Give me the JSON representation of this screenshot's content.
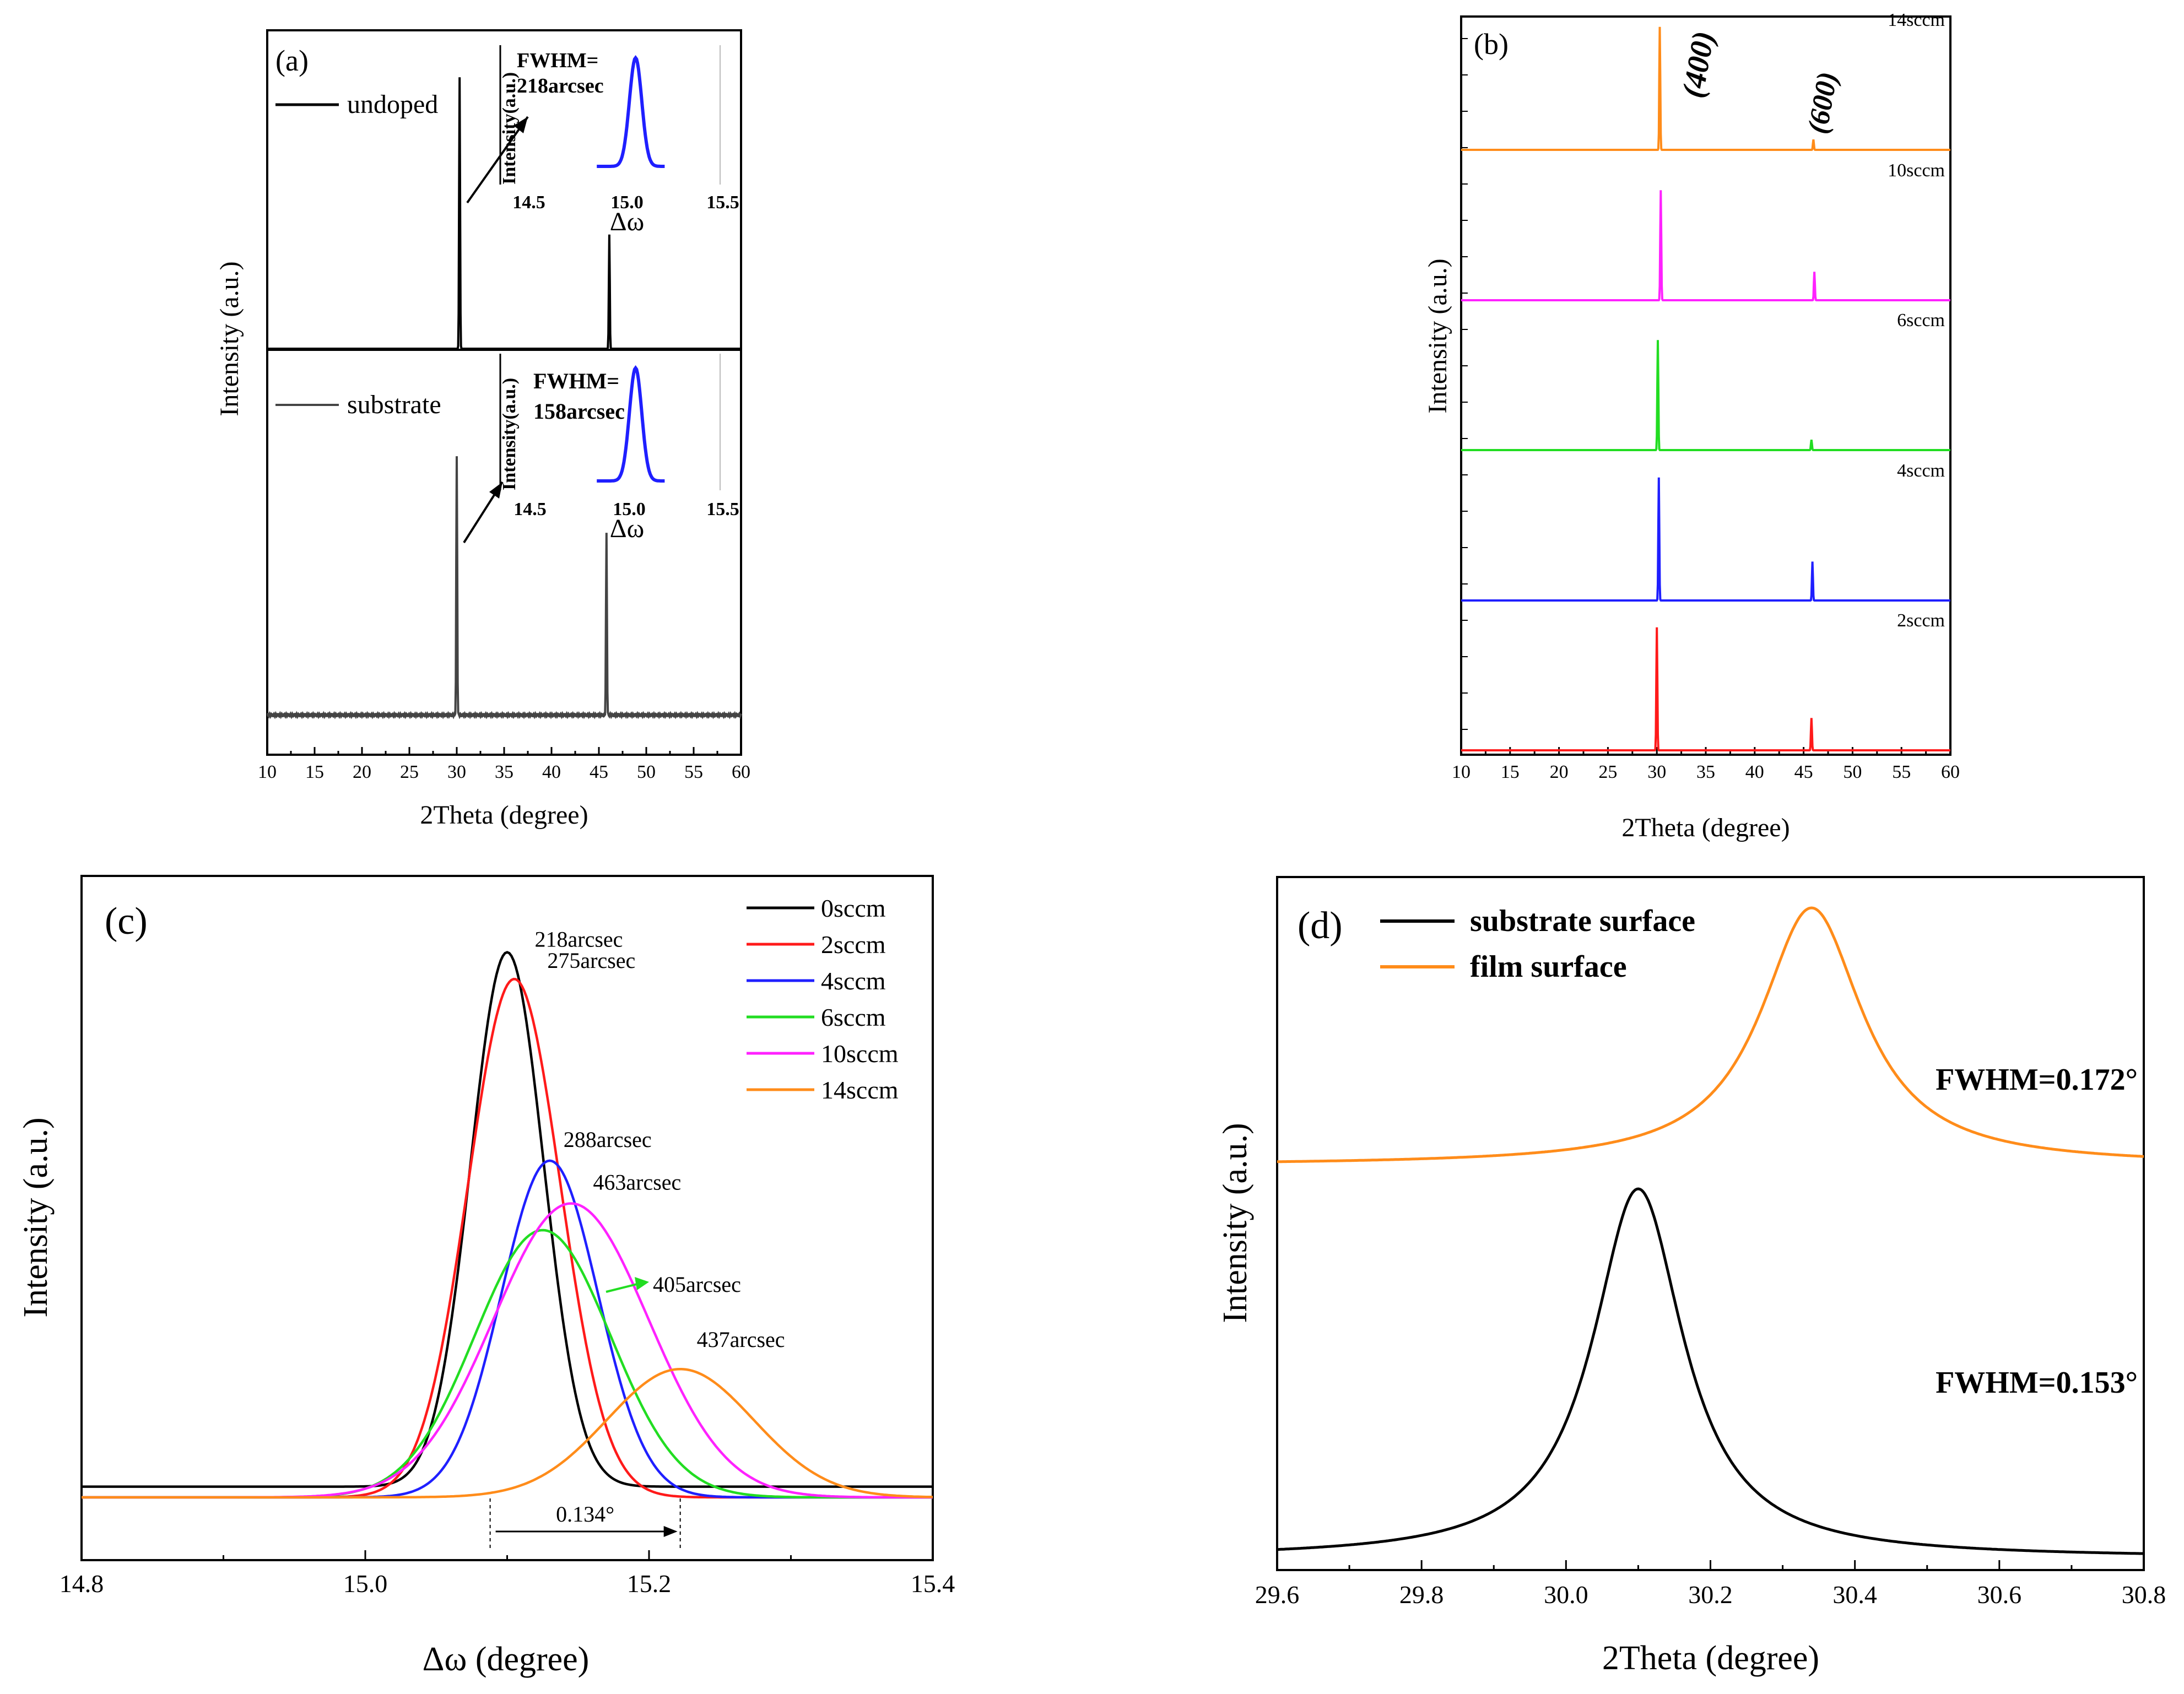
{
  "colors": {
    "black": "#000000",
    "gray": "#444444",
    "blue": "#1f1fff",
    "red": "#ff1a1a",
    "green": "#22dd22",
    "magenta": "#ff22ff",
    "orange": "#ff8c1a",
    "axis": "#000000"
  },
  "chart_data": [
    {
      "panel": "(a)",
      "type": "line",
      "xlabel": "2Theta (degree)",
      "ylabel": "Intensity (a.u.)",
      "xlim": [
        10,
        60
      ],
      "xticks": [
        "10",
        "15",
        "20",
        "25",
        "30",
        "35",
        "40",
        "45",
        "50",
        "55",
        "60"
      ],
      "series": [
        {
          "name": "undoped",
          "color": "#000000",
          "peaks": [
            {
              "x": 30.3,
              "height": 0.88
            },
            {
              "x": 46.1,
              "height": 0.37
            }
          ]
        },
        {
          "name": "substrate",
          "color": "#444444",
          "peaks": [
            {
              "x": 30.0,
              "height": 0.78
            },
            {
              "x": 45.8,
              "height": 0.55
            }
          ]
        }
      ],
      "insets": [
        {
          "fwhm_label": "FWHM=",
          "fwhm_value": "218arcsec",
          "ylabel": "Intensity(a.u.)",
          "xlabel": "Δω",
          "xticks": [
            "14.5",
            "15.0",
            "15.5"
          ],
          "color": "#1f1fff"
        },
        {
          "fwhm_label": "FWHM=",
          "fwhm_value": "158arcsec",
          "ylabel": "Intensity(a.u.)",
          "xlabel": "Δω",
          "xticks": [
            "14.5",
            "15.0",
            "15.5"
          ],
          "color": "#1f1fff"
        }
      ]
    },
    {
      "panel": "(b)",
      "type": "line",
      "xlabel": "2Theta (degree)",
      "ylabel": "Intensity (a.u.)",
      "xlim": [
        10,
        60
      ],
      "xticks": [
        "10",
        "15",
        "20",
        "25",
        "30",
        "35",
        "40",
        "45",
        "50",
        "55",
        "60"
      ],
      "peak_labels": [
        "(400)",
        "(600)"
      ],
      "series": [
        {
          "name": "14sccm",
          "color": "#ff8c1a",
          "peaks": [
            {
              "x": 30.3,
              "height": 0.95
            },
            {
              "x": 46.0,
              "height": 0.08
            }
          ]
        },
        {
          "name": "10sccm",
          "color": "#ff22ff",
          "peaks": [
            {
              "x": 30.4,
              "height": 0.85
            },
            {
              "x": 46.1,
              "height": 0.22
            }
          ]
        },
        {
          "name": "6sccm",
          "color": "#22dd22",
          "peaks": [
            {
              "x": 30.1,
              "height": 0.85
            },
            {
              "x": 45.8,
              "height": 0.08
            }
          ]
        },
        {
          "name": "4sccm",
          "color": "#1f1fff",
          "peaks": [
            {
              "x": 30.2,
              "height": 0.95
            },
            {
              "x": 45.9,
              "height": 0.3
            }
          ]
        },
        {
          "name": "2sccm",
          "color": "#ff1a1a",
          "peaks": [
            {
              "x": 30.0,
              "height": 0.95
            },
            {
              "x": 45.8,
              "height": 0.25
            }
          ]
        }
      ]
    },
    {
      "panel": "(c)",
      "type": "line",
      "xlabel": "Δω (degree)",
      "ylabel": "Intensity (a.u.)",
      "xlim": [
        14.8,
        15.4
      ],
      "xticks": [
        "14.8",
        "15.0",
        "15.2",
        "15.4"
      ],
      "shift_label": "0.134°",
      "shift_from": 15.088,
      "shift_to": 15.222,
      "series": [
        {
          "name": "0sccm",
          "color": "#000000",
          "center": 15.1,
          "fwhm_deg": 0.0606,
          "height": 1.0,
          "base": 0.02,
          "annotation": "218arcsec"
        },
        {
          "name": "2sccm",
          "color": "#ff1a1a",
          "center": 15.105,
          "fwhm_deg": 0.0764,
          "height": 0.97,
          "base": 0.0,
          "annotation": "275arcsec"
        },
        {
          "name": "4sccm",
          "color": "#1f1fff",
          "center": 15.13,
          "fwhm_deg": 0.08,
          "height": 0.63,
          "base": 0.0,
          "annotation": "288arcsec"
        },
        {
          "name": "6sccm",
          "color": "#22dd22",
          "center": 15.125,
          "fwhm_deg": 0.1125,
          "height": 0.5,
          "base": 0.0,
          "annotation": "405arcsec"
        },
        {
          "name": "10sccm",
          "color": "#ff22ff",
          "center": 15.145,
          "fwhm_deg": 0.1286,
          "height": 0.55,
          "base": 0.0,
          "annotation": "463arcsec"
        },
        {
          "name": "14sccm",
          "color": "#ff8c1a",
          "center": 15.222,
          "fwhm_deg": 0.1214,
          "height": 0.24,
          "base": 0.0,
          "annotation": "437arcsec"
        }
      ]
    },
    {
      "panel": "(d)",
      "type": "line",
      "xlabel": "2Theta (degree)",
      "ylabel": "Intensity (a.u.)",
      "xlim": [
        29.6,
        30.8
      ],
      "xticks": [
        "29.6",
        "29.8",
        "30.0",
        "30.2",
        "30.4",
        "30.6",
        "30.8"
      ],
      "series": [
        {
          "name": "substrate surface",
          "color": "#000000",
          "center": 30.1,
          "fwhm": 0.153,
          "annotation": "FWHM=0.153°"
        },
        {
          "name": "film surface",
          "color": "#ff8c1a",
          "center": 30.34,
          "fwhm": 0.172,
          "annotation": "FWHM=0.172°"
        }
      ]
    }
  ]
}
